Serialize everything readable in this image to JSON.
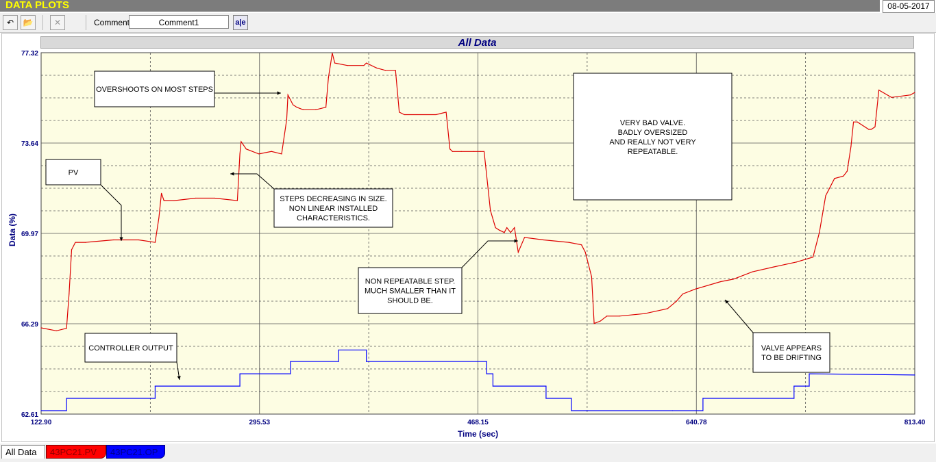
{
  "app": {
    "title": "DATA PLOTS",
    "date": "08-05-2017"
  },
  "toolbar": {
    "comment_label": "Comment",
    "comment_value": "Comment1",
    "abc_label": "a|e"
  },
  "chart_data": {
    "type": "line",
    "title": "All Data",
    "xlabel": "Time (sec)",
    "ylabel": "Data (%)",
    "xlim": [
      122.9,
      813.4
    ],
    "ylim": [
      62.61,
      77.32
    ],
    "x_ticks": [
      "122.90",
      "295.53",
      "468.15",
      "640.78",
      "813.40"
    ],
    "y_ticks": [
      "77.32",
      "73.64",
      "69.97",
      "66.29",
      "62.61"
    ],
    "grid": true,
    "series": [
      {
        "name": "43PC21.PV",
        "color": "#dd0000",
        "x": [
          122.9,
          135,
          143,
          145,
          147,
          150,
          158,
          180,
          200,
          213,
          216,
          218,
          220,
          228,
          245,
          260,
          278,
          280,
          281,
          285,
          295,
          305,
          313,
          317,
          318,
          322,
          325,
          330,
          340,
          348,
          350,
          353,
          355,
          365,
          378,
          380,
          388,
          395,
          403,
          406,
          410,
          420,
          435,
          443,
          446,
          448,
          455,
          465,
          470,
          473,
          478,
          482,
          485,
          489,
          491,
          494,
          497,
          500,
          505,
          520,
          540,
          550,
          553,
          558,
          560,
          565,
          570,
          580,
          600,
          618,
          625,
          630,
          640,
          660,
          670,
          685,
          702,
          720,
          733,
          738,
          743,
          745,
          750,
          757,
          760,
          763,
          765,
          768,
          777,
          779,
          782,
          785,
          795,
          810,
          813.4
        ],
        "values": [
          66.12,
          66.0,
          66.1,
          67.5,
          69.3,
          69.6,
          69.6,
          69.7,
          69.7,
          69.6,
          70.6,
          71.6,
          71.3,
          71.3,
          71.4,
          71.4,
          71.3,
          73.2,
          73.7,
          73.4,
          73.2,
          73.3,
          73.2,
          74.6,
          75.6,
          75.2,
          75.1,
          75.0,
          75.0,
          75.1,
          76.3,
          77.3,
          76.9,
          76.8,
          76.8,
          76.9,
          76.7,
          76.6,
          76.6,
          74.9,
          74.8,
          74.8,
          74.8,
          74.9,
          73.4,
          73.3,
          73.3,
          73.3,
          73.3,
          73.3,
          70.9,
          70.2,
          70.1,
          70.0,
          70.2,
          70.0,
          70.2,
          69.2,
          69.8,
          69.7,
          69.6,
          69.5,
          69.2,
          68.2,
          66.3,
          66.4,
          66.6,
          66.6,
          66.7,
          66.9,
          67.2,
          67.5,
          67.7,
          68.0,
          68.1,
          68.4,
          68.6,
          68.8,
          69.0,
          70.0,
          71.5,
          71.7,
          72.2,
          72.3,
          72.5,
          73.5,
          74.5,
          74.5,
          74.2,
          74.2,
          74.3,
          75.8,
          75.5,
          75.6,
          75.7
        ]
      },
      {
        "name": "43PC21.OP",
        "color": "#0000ff",
        "x": [
          122.9,
          143,
          143,
          213,
          213,
          280,
          280,
          320,
          320,
          358,
          358,
          380,
          380,
          475,
          475,
          480,
          480,
          522,
          522,
          542,
          542,
          622,
          622,
          646,
          646,
          718,
          718,
          730,
          730,
          813.4
        ],
        "values": [
          62.75,
          62.75,
          63.25,
          63.25,
          63.75,
          63.75,
          64.25,
          64.25,
          64.75,
          64.75,
          65.22,
          65.22,
          64.75,
          64.75,
          64.25,
          64.25,
          63.75,
          63.75,
          63.25,
          63.25,
          62.75,
          62.75,
          62.75,
          62.75,
          63.25,
          63.25,
          63.75,
          63.75,
          64.25,
          64.2
        ]
      }
    ],
    "annotations": [
      {
        "lines": [
          "OVERSHOOTS ON MOST STEPS"
        ]
      },
      {
        "lines": [
          "PV"
        ]
      },
      {
        "lines": [
          "STEPS DECREASING IN SIZE.",
          "NON LINEAR INSTALLED",
          "CHARACTERISTICS."
        ]
      },
      {
        "lines": [
          "NON REPEATABLE STEP.",
          "MUCH SMALLER THAN IT",
          "SHOULD BE."
        ]
      },
      {
        "lines": [
          "CONTROLLER OUTPUT"
        ]
      },
      {
        "lines": [
          "VERY BAD VALVE.",
          "BADLY OVERSIZED",
          "AND REALLY NOT VERY",
          "REPEATABLE."
        ]
      },
      {
        "lines": [
          "VALVE APPEARS",
          "TO BE DRIFTING"
        ]
      }
    ]
  },
  "tabs": [
    "All Data",
    "43PC21.PV",
    "43PC21.OP"
  ],
  "colors": {
    "plot_bg": "#fdfde3",
    "grid": "#404040",
    "axis_text": "#000080"
  }
}
